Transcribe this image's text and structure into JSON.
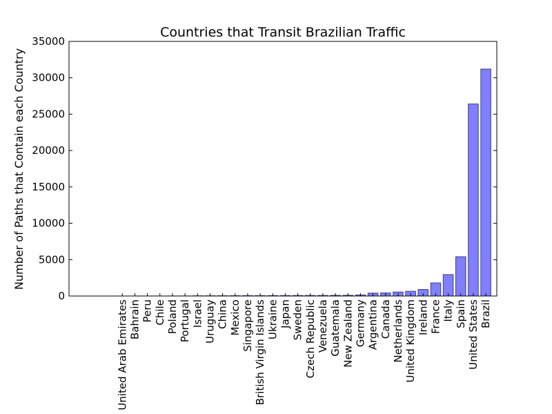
{
  "chart_data": {
    "type": "bar",
    "title": "Countries that Transit Brazilian Traffic",
    "xlabel": "",
    "ylabel": "Number of Paths that Contain each Country",
    "ylim": [
      0,
      35000
    ],
    "yticks": [
      0,
      5000,
      10000,
      15000,
      20000,
      25000,
      30000,
      35000
    ],
    "grid": false,
    "colors": {
      "bar_fill": "#7f7fff",
      "bar_edge": "#3f3f80"
    },
    "categories": [
      "United Arab Emirates",
      "Bahrain",
      "Peru",
      "Chile",
      "Poland",
      "Portugal",
      "Israel",
      "Uruguay",
      "China",
      "Mexico",
      "Singapore",
      "British Virgin Islands",
      "Ukraine",
      "Japan",
      "Sweden",
      "Czech Republic",
      "Venezuela",
      "Guatemala",
      "New Zealand",
      "Germany",
      "Argentina",
      "Canada",
      "Netherlands",
      "United Kingdom",
      "Ireland",
      "France",
      "Italy",
      "Spain",
      "United States",
      "Brazil"
    ],
    "values": [
      2,
      3,
      5,
      8,
      10,
      12,
      30,
      35,
      40,
      45,
      50,
      55,
      60,
      65,
      70,
      75,
      80,
      90,
      100,
      150,
      400,
      420,
      550,
      650,
      900,
      1800,
      2950,
      5400,
      26400,
      31200
    ]
  }
}
